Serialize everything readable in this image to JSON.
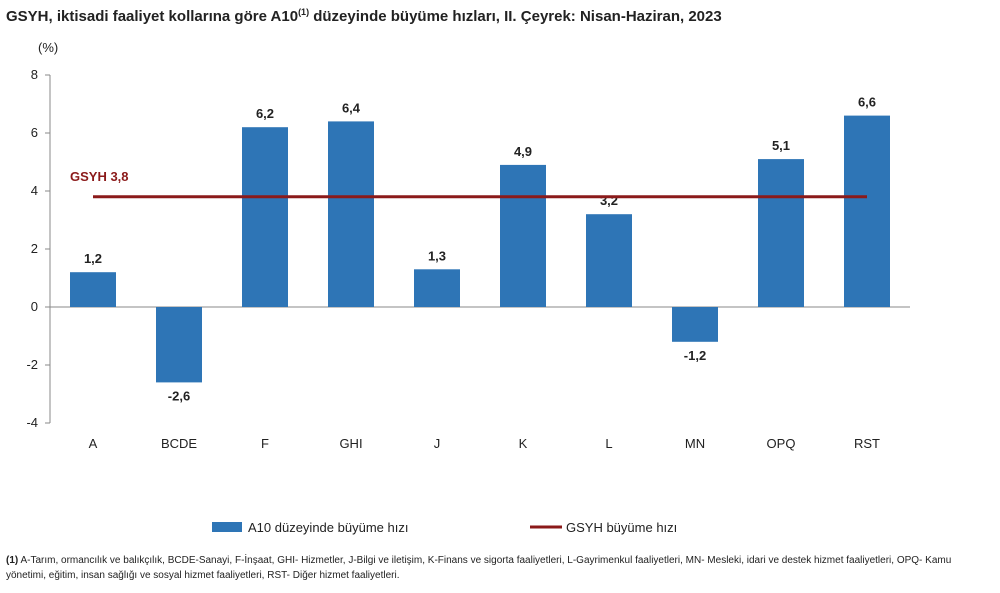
{
  "title": {
    "main": "GSYH, iktisadi faaliyet kollarına göre A10",
    "sup": "(1)",
    "rest": " düzeyinde büyüme hızları, II. Çeyrek: Nisan-Haziran, 2023"
  },
  "chart_data": {
    "type": "bar",
    "ylabel": "(%)",
    "ylim": [
      -4,
      8
    ],
    "yticks": [
      -4,
      -2,
      0,
      2,
      4,
      6,
      8
    ],
    "grid": false,
    "categories": [
      "A",
      "BCDE",
      "F",
      "GHI",
      "J",
      "K",
      "L",
      "MN",
      "OPQ",
      "RST"
    ],
    "series": [
      {
        "name": "A10 düzeyinde büyüme hızı",
        "values": [
          1.2,
          -2.6,
          6.2,
          6.4,
          1.3,
          4.9,
          3.2,
          -1.2,
          5.1,
          6.6
        ],
        "labels": [
          "1,2",
          "-2,6",
          "6,2",
          "6,4",
          "1,3",
          "4,9",
          "3,2",
          "-1,2",
          "5,1",
          "6,6"
        ],
        "color": "#2e75b6"
      }
    ],
    "reference_line": {
      "name": "GSYH büyüme hızı",
      "value": 3.8,
      "label": "GSYH 3,8",
      "color": "#8b1a1a"
    },
    "legend_position": "bottom"
  },
  "footnote": {
    "marker": "(1)",
    "text": " A-Tarım, ormancılık ve balıkçılık, BCDE-Sanayi, F-İnşaat, GHI- Hizmetler, J-Bilgi ve iletişim, K-Finans ve sigorta faaliyetleri, L-Gayrimenkul faaliyetleri, MN- Mesleki, idari ve destek hizmet faaliyetleri, OPQ- Kamu yönetimi, eğitim, insan sağlığı ve sosyal hizmet faaliyetleri, RST- Diğer hizmet faaliyetleri."
  }
}
